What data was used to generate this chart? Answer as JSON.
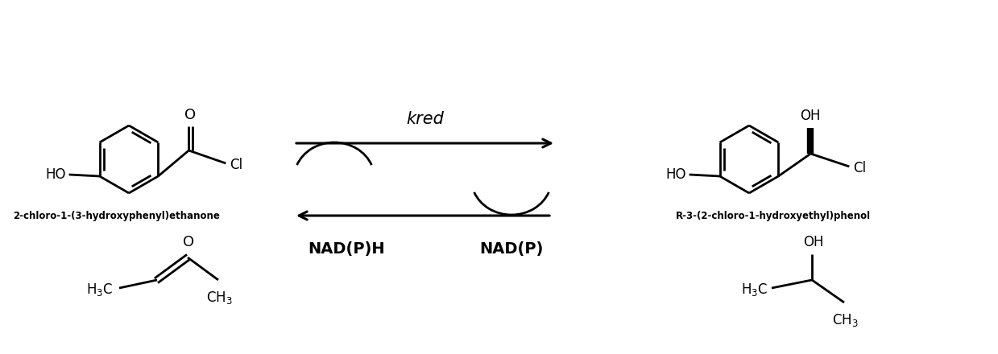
{
  "bg_color": "#ffffff",
  "line_color": "#000000",
  "line_width": 2.0,
  "text_color": "#000000",
  "label_top_left": "2-chloro-1-(3-hydroxyphenyl)ethanone",
  "label_top_right": "R-3-(2-chloro-1-hydroxyethyl)phenol",
  "label_kred": "kred",
  "label_nadph": "NAD(P)H",
  "label_nadp": "NAD(P)",
  "figsize": [
    12.39,
    4.4
  ],
  "dpi": 100
}
